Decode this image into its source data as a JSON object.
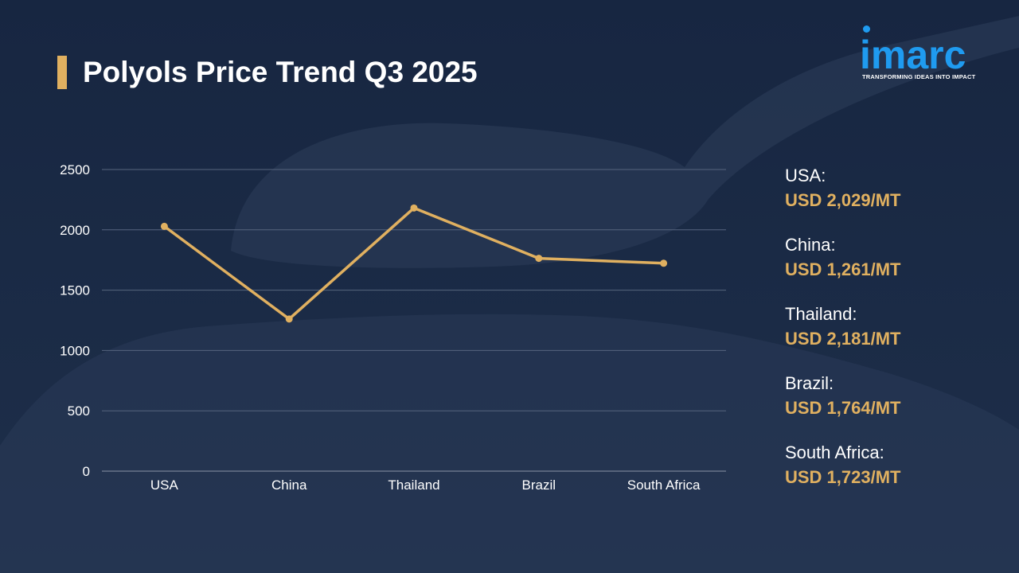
{
  "title": "Polyols Price Trend Q3 2025",
  "logo": {
    "name": "imarc",
    "tagline": "TRANSFORMING IDEAS INTO IMPACT"
  },
  "colors": {
    "background": "#1b2a45",
    "accent": "#e0b060",
    "logo": "#1f9bf0",
    "grid": "#56657e",
    "text": "#ffffff"
  },
  "chart_data": {
    "type": "line",
    "categories": [
      "USA",
      "China",
      "Thailand",
      "Brazil",
      "South Africa"
    ],
    "series": [
      {
        "values": [
          2029,
          1261,
          2181,
          1764,
          1723
        ]
      }
    ],
    "yticks": [
      "0",
      "500",
      "1000",
      "1500",
      "2000",
      "2500"
    ],
    "ylim": [
      0,
      2500
    ],
    "grid": true,
    "xlabel": "",
    "ylabel": ""
  },
  "legend": [
    {
      "name": "USA:",
      "value": "USD 2,029/MT"
    },
    {
      "name": "China:",
      "value": "USD 1,261/MT"
    },
    {
      "name": "Thailand:",
      "value": "USD 2,181/MT"
    },
    {
      "name": "Brazil:",
      "value": "USD 1,764/MT"
    },
    {
      "name": "South Africa:",
      "value": "USD 1,723/MT"
    }
  ]
}
